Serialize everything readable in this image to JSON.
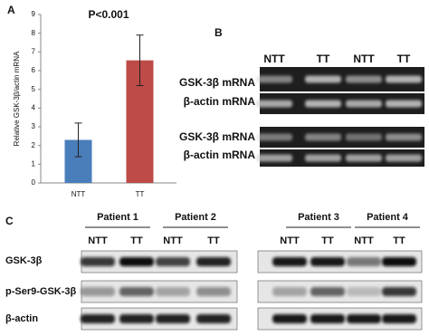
{
  "chart_data": {
    "type": "bar",
    "panel_label": "A",
    "annotation": "P<0.001",
    "y_label": "Relative GSK-3β/actin mRNA",
    "categories": [
      "NTT",
      "TT"
    ],
    "values": [
      2.3,
      6.55
    ],
    "errors": [
      0.9,
      1.35
    ],
    "colors": [
      "#4a7ebb",
      "#be4b48"
    ],
    "ylim": [
      0,
      9
    ],
    "yticks": [
      0,
      1,
      2,
      3,
      4,
      5,
      6,
      7,
      8,
      9
    ]
  },
  "panel_b": {
    "label": "B",
    "columns": [
      "NTT",
      "TT",
      "NTT",
      "TT"
    ],
    "rows": [
      "GSK-3β mRNA",
      "β-actin mRNA",
      "GSK-3β mRNA",
      "β-actin mRNA"
    ]
  },
  "panel_c": {
    "label": "C",
    "patients": [
      "Patient 1",
      "Patient 2",
      "Patient 3",
      "Patient 4"
    ],
    "columns": [
      "NTT",
      "TT",
      "NTT",
      "TT",
      "NTT",
      "TT",
      "NTT",
      "TT"
    ],
    "rows": [
      "GSK-3β",
      "p-Ser9-GSK-3β",
      "β-actin"
    ]
  }
}
